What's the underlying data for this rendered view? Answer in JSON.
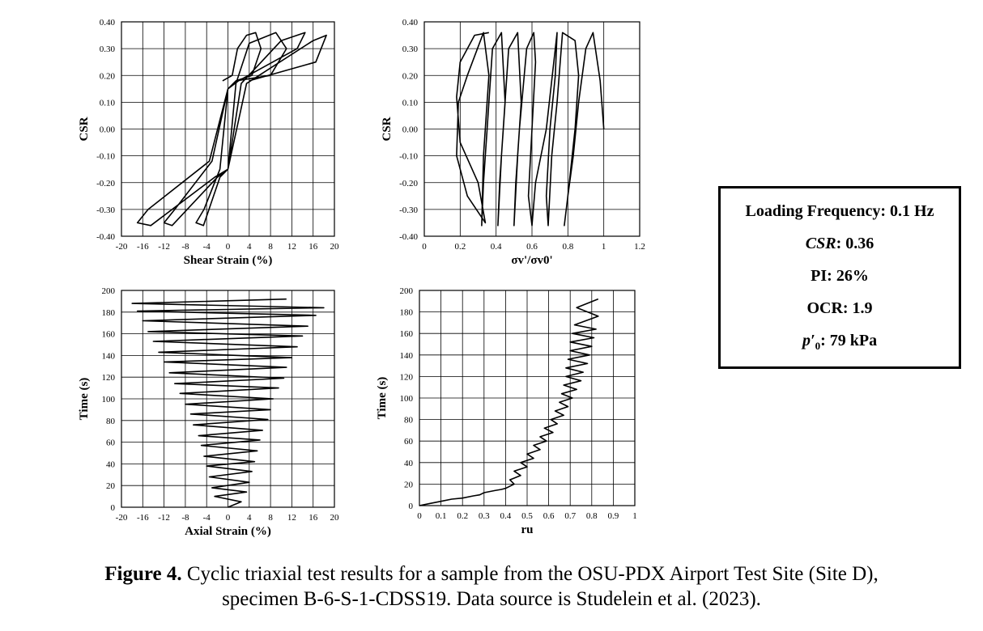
{
  "chart_data": [
    {
      "type": "line",
      "id": "csr-vs-shear-strain",
      "title": "",
      "xlabel": "Shear Strain (%)",
      "ylabel": "CSR",
      "xlim": [
        -20,
        20
      ],
      "ylim": [
        -0.4,
        0.4
      ],
      "xticks": [
        "-20",
        "-16",
        "-12",
        "-8",
        "-4",
        "0",
        "4",
        "8",
        "12",
        "16",
        "20"
      ],
      "yticks": [
        "0.40",
        "0.30",
        "0.20",
        "0.10",
        "0.00",
        "-0.10",
        "-0.20",
        "-0.30",
        "-0.40"
      ],
      "grid": true,
      "series": [
        {
          "description": "hysteresis loops",
          "x": [
            -1.0,
            0.8,
            1.8,
            3.5,
            5.2,
            6.2,
            4.5,
            1.5,
            0,
            -1.5,
            -4.5,
            -6.0,
            -4.6,
            -1.5,
            0,
            1.5,
            4.0,
            9.0,
            11.0,
            8.0,
            1.5,
            0,
            -3.0,
            -10.0,
            -12.0,
            -10.5,
            -2.0,
            0,
            2.5,
            10.0,
            14.5,
            13.0,
            2.0,
            0,
            -3.5,
            -15.0,
            -17.0,
            -14.5,
            -2.5,
            0,
            3.5,
            16.0,
            18.5,
            16.5,
            4.0
          ],
          "y": [
            0.18,
            0.2,
            0.3,
            0.35,
            0.36,
            0.3,
            0.2,
            0.18,
            0.15,
            -0.15,
            -0.3,
            -0.35,
            -0.36,
            -0.18,
            -0.15,
            0.17,
            0.32,
            0.36,
            0.3,
            0.2,
            0.18,
            0.15,
            -0.12,
            -0.3,
            -0.35,
            -0.36,
            -0.18,
            -0.15,
            0.17,
            0.33,
            0.36,
            0.3,
            0.18,
            0.15,
            -0.12,
            -0.3,
            -0.35,
            -0.36,
            -0.18,
            -0.15,
            0.17,
            0.33,
            0.35,
            0.25,
            0.18
          ]
        }
      ]
    },
    {
      "type": "line",
      "id": "csr-vs-stress-ratio",
      "title": "",
      "xlabel": "σv'/σv0'",
      "ylabel": "CSR",
      "xlim": [
        0,
        1.2
      ],
      "ylim": [
        -0.4,
        0.4
      ],
      "xticks": [
        "0",
        "0.2",
        "0.4",
        "0.6",
        "0.8",
        "1",
        "1.2"
      ],
      "yticks": [
        "0.40",
        "0.30",
        "0.20",
        "0.10",
        "0.00",
        "-0.10",
        "-0.20",
        "-0.30",
        "-0.40"
      ],
      "grid": true,
      "series": [
        {
          "description": "stress path",
          "x": [
            1.0,
            0.98,
            0.94,
            0.9,
            0.86,
            0.83,
            0.8,
            0.78,
            0.8,
            0.84,
            0.86,
            0.84,
            0.77,
            0.74,
            0.71,
            0.69,
            0.68,
            0.7,
            0.73,
            0.74,
            0.73,
            0.68,
            0.62,
            0.6,
            0.58,
            0.6,
            0.62,
            0.61,
            0.57,
            0.53,
            0.51,
            0.5,
            0.52,
            0.54,
            0.52,
            0.47,
            0.44,
            0.42,
            0.41,
            0.43,
            0.45,
            0.43,
            0.38,
            0.35,
            0.33,
            0.32,
            0.33,
            0.36,
            0.33,
            0.24,
            0.19,
            0.18,
            0.24,
            0.34,
            0.3,
            0.2,
            0.18,
            0.2,
            0.28,
            0.36
          ],
          "y": [
            0.0,
            0.18,
            0.36,
            0.3,
            0.1,
            -0.1,
            -0.25,
            -0.36,
            -0.25,
            0.0,
            0.2,
            0.33,
            0.36,
            0.1,
            -0.1,
            -0.36,
            -0.25,
            0.0,
            0.2,
            0.36,
            0.3,
            0.0,
            -0.2,
            -0.36,
            -0.25,
            0.0,
            0.25,
            0.36,
            0.3,
            0.0,
            -0.2,
            -0.36,
            -0.1,
            0.1,
            0.36,
            0.3,
            0.0,
            -0.2,
            -0.36,
            -0.1,
            0.1,
            0.36,
            0.3,
            0.0,
            -0.2,
            -0.36,
            -0.1,
            0.2,
            0.36,
            0.2,
            0.1,
            -0.1,
            -0.25,
            -0.35,
            -0.2,
            -0.05,
            0.12,
            0.25,
            0.35,
            0.36
          ]
        }
      ]
    },
    {
      "type": "line",
      "id": "time-vs-axial-strain",
      "title": "",
      "xlabel": "Axial Strain (%)",
      "ylabel": "Time (s)",
      "xlim": [
        -20,
        20
      ],
      "ylim": [
        0,
        200
      ],
      "xticks": [
        "-20",
        "-16",
        "-12",
        "-8",
        "-4",
        "0",
        "4",
        "8",
        "12",
        "16",
        "20"
      ],
      "yticks": [
        "200",
        "180",
        "160",
        "140",
        "120",
        "100",
        "80",
        "60",
        "40",
        "20",
        "0"
      ],
      "grid": true,
      "series": [
        {
          "description": "axial strain oscillation amplitudes per cycle",
          "x": [
            0,
            2.5,
            -2.5,
            3.5,
            -3.0,
            4.0,
            -3.5,
            4.5,
            -4.0,
            5.0,
            -4.5,
            5.5,
            -5.0,
            6.0,
            -5.5,
            6.5,
            -6.5,
            7.5,
            -7.0,
            8.0,
            -8.0,
            8.5,
            -9.0,
            9.5,
            -10.0,
            10.5,
            -11.0,
            11.0,
            -12.0,
            12.0,
            -13.0,
            13.0,
            -14.0,
            14.0,
            -15.0,
            15.0,
            -16.0,
            16.5,
            -17.0,
            18.0,
            -18.0,
            11.0
          ],
          "y": [
            0,
            5,
            10,
            14,
            18,
            23,
            28,
            33,
            38,
            42,
            47,
            52,
            57,
            62,
            66,
            71,
            76,
            81,
            86,
            90,
            95,
            100,
            105,
            110,
            114,
            119,
            124,
            129,
            134,
            138,
            143,
            148,
            153,
            158,
            162,
            167,
            172,
            177,
            181,
            184,
            188,
            192
          ]
        }
      ]
    },
    {
      "type": "line",
      "id": "time-vs-ru",
      "title": "",
      "xlabel": "ru",
      "ylabel": "Time (s)",
      "xlim": [
        0,
        1
      ],
      "ylim": [
        0,
        200
      ],
      "xticks": [
        "0",
        "0.1",
        "0.2",
        "0.3",
        "0.4",
        "0.5",
        "0.6",
        "0.7",
        "0.8",
        "0.9",
        "1"
      ],
      "yticks": [
        "200",
        "180",
        "160",
        "140",
        "120",
        "100",
        "80",
        "60",
        "40",
        "20",
        "0"
      ],
      "grid": true,
      "series": [
        {
          "description": "pore pressure ratio oscillation",
          "x": [
            0.0,
            0.05,
            0.1,
            0.15,
            0.2,
            0.25,
            0.28,
            0.3,
            0.35,
            0.38,
            0.4,
            0.44,
            0.42,
            0.47,
            0.44,
            0.5,
            0.47,
            0.53,
            0.5,
            0.56,
            0.53,
            0.59,
            0.56,
            0.62,
            0.58,
            0.64,
            0.61,
            0.67,
            0.63,
            0.69,
            0.65,
            0.71,
            0.66,
            0.73,
            0.67,
            0.75,
            0.68,
            0.76,
            0.68,
            0.78,
            0.69,
            0.79,
            0.7,
            0.8,
            0.7,
            0.81,
            0.71,
            0.82,
            0.72,
            0.83,
            0.73,
            0.83
          ],
          "y": [
            0,
            2,
            4,
            6,
            7,
            9,
            10,
            12,
            14,
            15,
            16,
            20,
            24,
            28,
            32,
            36,
            40,
            44,
            48,
            52,
            56,
            60,
            64,
            68,
            72,
            76,
            80,
            84,
            88,
            92,
            96,
            100,
            104,
            108,
            112,
            116,
            120,
            124,
            128,
            132,
            136,
            140,
            144,
            148,
            152,
            156,
            160,
            164,
            168,
            176,
            184,
            192
          ]
        }
      ]
    }
  ],
  "params": {
    "freq_label": "Loading Frequency: 0.1 Hz",
    "csr_symbol": "CSR",
    "csr_value": ": 0.36",
    "pi": "PI: 26%",
    "ocr": "OCR: 1.9",
    "p0_symbol": "p′",
    "p0_sub": "0",
    "p0_value": ": 79 kPa"
  },
  "caption": {
    "label": "Figure 4.",
    "line1": " Cyclic triaxial test results for a sample from the OSU-PDX Airport Test Site (Site D),",
    "line2": "specimen B-6-S-1-CDSS19. Data source is Studelein et al. (2023)."
  }
}
